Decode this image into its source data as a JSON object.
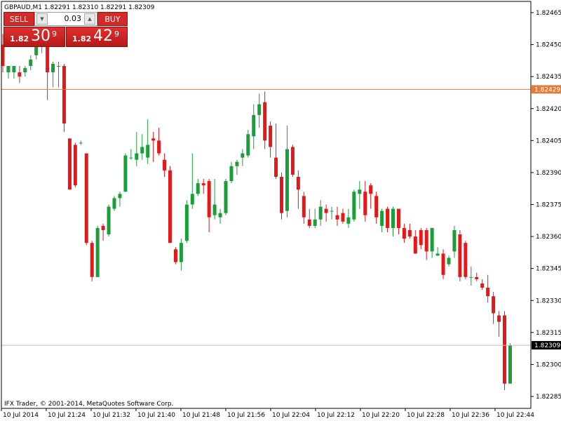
{
  "header": {
    "symbol_info": "GBPAUD,M1  1.82291 1.82310 1.82291 1.82309"
  },
  "trade_panel": {
    "sell_label": "SELL",
    "buy_label": "BUY",
    "lot_value": "0.03",
    "bid": {
      "prefix": "1.82",
      "big": "30",
      "sup": "9"
    },
    "ask": {
      "prefix": "1.82",
      "big": "42",
      "sup": "9"
    }
  },
  "copyright": "IFX Trader, © 2001-2014, MetaQuotes Software Corp.",
  "price_scale": {
    "labels": [
      "1.82465",
      "1.82450",
      "1.82435",
      "1.82420",
      "1.82405",
      "1.82390",
      "1.82375",
      "1.82360",
      "1.82345",
      "1.82330",
      "1.82315",
      "1.82300",
      "1.82285"
    ],
    "ask_line_label": "1.82429",
    "bid_line_label": "1.82309"
  },
  "time_scale": {
    "labels": [
      "10 Jul 2014",
      "10 Jul 21:24",
      "10 Jul 21:32",
      "10 Jul 21:40",
      "10 Jul 21:48",
      "10 Jul 21:56",
      "10 Jul 22:04",
      "10 Jul 22:12",
      "10 Jul 22:20",
      "10 Jul 22:28",
      "10 Jul 22:36",
      "10 Jul 22:44"
    ]
  },
  "colors": {
    "bull": "#1b9e3a",
    "bear": "#e41818",
    "ask_line": "#e07b39",
    "bid_line": "#b8b8b8",
    "label_bg": "#000000",
    "ask_label_bg": "#e07b39"
  },
  "chart_data": {
    "type": "candlestick",
    "symbol": "GBPAUD",
    "timeframe": "M1",
    "ylim": [
      1.8228,
      1.8247
    ],
    "ask_line": 1.82429,
    "bid_line": 1.82309,
    "candles": [
      {
        "o": 1.8245,
        "h": 1.82455,
        "l": 1.82437,
        "c": 1.8244
      },
      {
        "o": 1.82437,
        "h": 1.8244,
        "l": 1.82434,
        "c": 1.8244
      },
      {
        "o": 1.82437,
        "h": 1.8244,
        "l": 1.82434,
        "c": 1.8244
      },
      {
        "o": 1.82437,
        "h": 1.8244,
        "l": 1.82432,
        "c": 1.82435
      },
      {
        "o": 1.82437,
        "h": 1.8244,
        "l": 1.82435,
        "c": 1.82439
      },
      {
        "o": 1.8244,
        "h": 1.82445,
        "l": 1.82438,
        "c": 1.82443
      },
      {
        "o": 1.82445,
        "h": 1.8245,
        "l": 1.82443,
        "c": 1.82449
      },
      {
        "o": 1.82449,
        "h": 1.82452,
        "l": 1.82446,
        "c": 1.8245
      },
      {
        "o": 1.8245,
        "h": 1.82452,
        "l": 1.82424,
        "c": 1.82437
      },
      {
        "o": 1.82437,
        "h": 1.82442,
        "l": 1.8243,
        "c": 1.82441
      },
      {
        "o": 1.8244,
        "h": 1.82442,
        "l": 1.8243,
        "c": 1.8244
      },
      {
        "o": 1.8244,
        "h": 1.82441,
        "l": 1.82409,
        "c": 1.82413
      },
      {
        "o": 1.82406,
        "h": 1.82406,
        "l": 1.82382,
        "c": 1.82382
      },
      {
        "o": 1.82403,
        "h": 1.82404,
        "l": 1.82383,
        "c": 1.82384
      },
      {
        "o": 1.82404,
        "h": 1.82405,
        "l": 1.82403,
        "c": 1.82404
      },
      {
        "o": 1.82399,
        "h": 1.82399,
        "l": 1.82356,
        "c": 1.82357
      },
      {
        "o": 1.82357,
        "h": 1.82358,
        "l": 1.82339,
        "c": 1.82341
      },
      {
        "o": 1.82341,
        "h": 1.82365,
        "l": 1.82341,
        "c": 1.82364
      },
      {
        "o": 1.82365,
        "h": 1.82366,
        "l": 1.82358,
        "c": 1.82363
      },
      {
        "o": 1.82361,
        "h": 1.82375,
        "l": 1.8236,
        "c": 1.82374
      },
      {
        "o": 1.82373,
        "h": 1.82379,
        "l": 1.82372,
        "c": 1.82378
      },
      {
        "o": 1.82378,
        "h": 1.82381,
        "l": 1.82374,
        "c": 1.8238
      },
      {
        "o": 1.82381,
        "h": 1.82399,
        "l": 1.82381,
        "c": 1.82398
      },
      {
        "o": 1.82397,
        "h": 1.82401,
        "l": 1.82396,
        "c": 1.82397
      },
      {
        "o": 1.82396,
        "h": 1.82409,
        "l": 1.82393,
        "c": 1.82399
      },
      {
        "o": 1.82399,
        "h": 1.82408,
        "l": 1.82396,
        "c": 1.82402
      },
      {
        "o": 1.82397,
        "h": 1.82415,
        "l": 1.82394,
        "c": 1.82403
      },
      {
        "o": 1.82406,
        "h": 1.82409,
        "l": 1.82395,
        "c": 1.82405
      },
      {
        "o": 1.82405,
        "h": 1.82411,
        "l": 1.82398,
        "c": 1.82399
      },
      {
        "o": 1.82396,
        "h": 1.82399,
        "l": 1.82388,
        "c": 1.82391
      },
      {
        "o": 1.82391,
        "h": 1.82393,
        "l": 1.82357,
        "c": 1.82357
      },
      {
        "o": 1.82354,
        "h": 1.82355,
        "l": 1.82347,
        "c": 1.82348
      },
      {
        "o": 1.82348,
        "h": 1.82359,
        "l": 1.82344,
        "c": 1.82357
      },
      {
        "o": 1.82358,
        "h": 1.82377,
        "l": 1.82357,
        "c": 1.82375
      },
      {
        "o": 1.82375,
        "h": 1.82399,
        "l": 1.82373,
        "c": 1.8238
      },
      {
        "o": 1.8238,
        "h": 1.82387,
        "l": 1.82379,
        "c": 1.82385
      },
      {
        "o": 1.82385,
        "h": 1.82387,
        "l": 1.8238,
        "c": 1.82384
      },
      {
        "o": 1.82386,
        "h": 1.82387,
        "l": 1.82362,
        "c": 1.82369
      },
      {
        "o": 1.8237,
        "h": 1.82387,
        "l": 1.82368,
        "c": 1.82375
      },
      {
        "o": 1.82369,
        "h": 1.82373,
        "l": 1.82366,
        "c": 1.82371
      },
      {
        "o": 1.82371,
        "h": 1.82387,
        "l": 1.8237,
        "c": 1.82386
      },
      {
        "o": 1.82386,
        "h": 1.82395,
        "l": 1.82385,
        "c": 1.82393
      },
      {
        "o": 1.82393,
        "h": 1.82396,
        "l": 1.82389,
        "c": 1.82395
      },
      {
        "o": 1.82397,
        "h": 1.82401,
        "l": 1.82393,
        "c": 1.82399
      },
      {
        "o": 1.82398,
        "h": 1.8241,
        "l": 1.82397,
        "c": 1.82408
      },
      {
        "o": 1.82407,
        "h": 1.82422,
        "l": 1.82401,
        "c": 1.82417
      },
      {
        "o": 1.82417,
        "h": 1.82427,
        "l": 1.82411,
        "c": 1.82422
      },
      {
        "o": 1.82423,
        "h": 1.82428,
        "l": 1.82401,
        "c": 1.82405
      },
      {
        "o": 1.82412,
        "h": 1.82414,
        "l": 1.82397,
        "c": 1.82402
      },
      {
        "o": 1.82397,
        "h": 1.82413,
        "l": 1.82387,
        "c": 1.82388
      },
      {
        "o": 1.82388,
        "h": 1.8239,
        "l": 1.82368,
        "c": 1.82371
      },
      {
        "o": 1.82372,
        "h": 1.82412,
        "l": 1.82369,
        "c": 1.82401
      },
      {
        "o": 1.82402,
        "h": 1.82403,
        "l": 1.82388,
        "c": 1.82389
      },
      {
        "o": 1.82388,
        "h": 1.82391,
        "l": 1.82373,
        "c": 1.82382
      },
      {
        "o": 1.82379,
        "h": 1.82381,
        "l": 1.82366,
        "c": 1.82369
      },
      {
        "o": 1.82368,
        "h": 1.82373,
        "l": 1.82364,
        "c": 1.82365
      },
      {
        "o": 1.82365,
        "h": 1.82373,
        "l": 1.82364,
        "c": 1.82368
      },
      {
        "o": 1.82368,
        "h": 1.82377,
        "l": 1.82365,
        "c": 1.82374
      },
      {
        "o": 1.82373,
        "h": 1.82375,
        "l": 1.82367,
        "c": 1.82371
      },
      {
        "o": 1.82372,
        "h": 1.82374,
        "l": 1.82368,
        "c": 1.82372
      },
      {
        "o": 1.8237,
        "h": 1.82374,
        "l": 1.82365,
        "c": 1.82368
      },
      {
        "o": 1.82371,
        "h": 1.82373,
        "l": 1.82366,
        "c": 1.82367
      },
      {
        "o": 1.82366,
        "h": 1.82373,
        "l": 1.82364,
        "c": 1.82369
      },
      {
        "o": 1.82368,
        "h": 1.82382,
        "l": 1.82367,
        "c": 1.82381
      },
      {
        "o": 1.8238,
        "h": 1.82386,
        "l": 1.82373,
        "c": 1.82382
      },
      {
        "o": 1.82381,
        "h": 1.82386,
        "l": 1.82367,
        "c": 1.8237
      },
      {
        "o": 1.82384,
        "h": 1.82385,
        "l": 1.82373,
        "c": 1.8238
      },
      {
        "o": 1.82379,
        "h": 1.82381,
        "l": 1.82366,
        "c": 1.82369
      },
      {
        "o": 1.82365,
        "h": 1.82373,
        "l": 1.82362,
        "c": 1.82372
      },
      {
        "o": 1.82373,
        "h": 1.82374,
        "l": 1.82362,
        "c": 1.82364
      },
      {
        "o": 1.82364,
        "h": 1.82374,
        "l": 1.8236,
        "c": 1.82373
      },
      {
        "o": 1.82373,
        "h": 1.82373,
        "l": 1.82361,
        "c": 1.82364
      },
      {
        "o": 1.82364,
        "h": 1.82366,
        "l": 1.82357,
        "c": 1.82359
      },
      {
        "o": 1.82363,
        "h": 1.82366,
        "l": 1.82359,
        "c": 1.8236
      },
      {
        "o": 1.8236,
        "h": 1.82363,
        "l": 1.82352,
        "c": 1.82352
      },
      {
        "o": 1.82363,
        "h": 1.82364,
        "l": 1.82354,
        "c": 1.82356
      },
      {
        "o": 1.82363,
        "h": 1.82364,
        "l": 1.82349,
        "c": 1.82353
      },
      {
        "o": 1.82353,
        "h": 1.82364,
        "l": 1.8235,
        "c": 1.82364
      },
      {
        "o": 1.82351,
        "h": 1.82355,
        "l": 1.82351,
        "c": 1.82352
      },
      {
        "o": 1.82352,
        "h": 1.82354,
        "l": 1.8234,
        "c": 1.82342
      },
      {
        "o": 1.82347,
        "h": 1.82351,
        "l": 1.82346,
        "c": 1.8235
      },
      {
        "o": 1.82353,
        "h": 1.82365,
        "l": 1.8235,
        "c": 1.82363
      },
      {
        "o": 1.82361,
        "h": 1.82363,
        "l": 1.82339,
        "c": 1.82341
      },
      {
        "o": 1.82357,
        "h": 1.82358,
        "l": 1.8234,
        "c": 1.82341
      },
      {
        "o": 1.82341,
        "h": 1.82346,
        "l": 1.82337,
        "c": 1.82341
      },
      {
        "o": 1.82341,
        "h": 1.82343,
        "l": 1.82339,
        "c": 1.8234
      },
      {
        "o": 1.82338,
        "h": 1.8234,
        "l": 1.82335,
        "c": 1.82336
      },
      {
        "o": 1.82336,
        "h": 1.82342,
        "l": 1.82329,
        "c": 1.82332
      },
      {
        "o": 1.82332,
        "h": 1.82334,
        "l": 1.82319,
        "c": 1.82324
      },
      {
        "o": 1.82323,
        "h": 1.82325,
        "l": 1.82313,
        "c": 1.8232
      },
      {
        "o": 1.82323,
        "h": 1.82325,
        "l": 1.82288,
        "c": 1.82291
      },
      {
        "o": 1.82291,
        "h": 1.8231,
        "l": 1.82291,
        "c": 1.82309
      }
    ]
  }
}
